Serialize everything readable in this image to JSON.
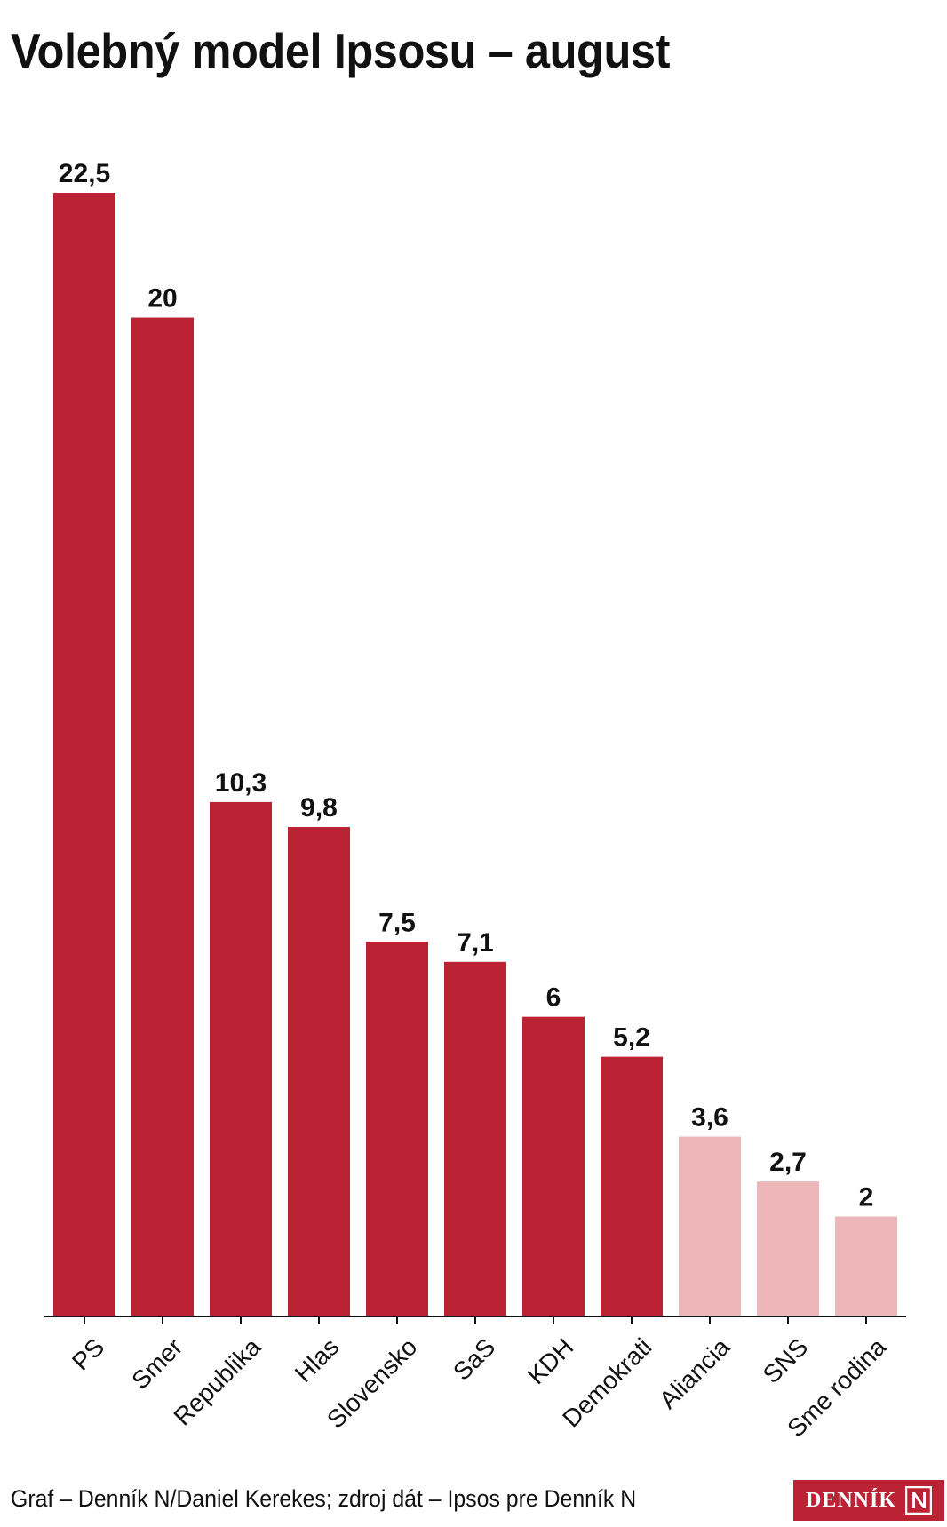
{
  "chart_data": {
    "type": "bar",
    "title": "Volebný model Ipsosu – august",
    "categories": [
      "PS",
      "Smer",
      "Republika",
      "Hlas",
      "Slovensko",
      "SaS",
      "KDH",
      "Demokrati",
      "Aliancia",
      "SNS",
      "Sme rodina"
    ],
    "values": [
      22.5,
      20,
      10.3,
      9.8,
      7.5,
      7.1,
      6,
      5.2,
      3.6,
      2.7,
      2
    ],
    "value_labels": [
      "22,5",
      "20",
      "10,3",
      "9,8",
      "7,5",
      "7,1",
      "6",
      "5,2",
      "3,6",
      "2,7",
      "2"
    ],
    "xlabel": "",
    "ylabel": "",
    "ylim": [
      0,
      22.5
    ],
    "grid": false,
    "colors": {
      "above_threshold": "#bb2233",
      "below_threshold": "#ecb5b8"
    },
    "highlighted": [
      true,
      true,
      true,
      true,
      true,
      true,
      true,
      true,
      false,
      false,
      false
    ]
  },
  "footer": {
    "credit": "Graf – Denník N/Daniel Kerekes; zdroj dát – Ipsos pre Denník N"
  },
  "brand": {
    "name": "DENNÍK",
    "mark": "N"
  }
}
